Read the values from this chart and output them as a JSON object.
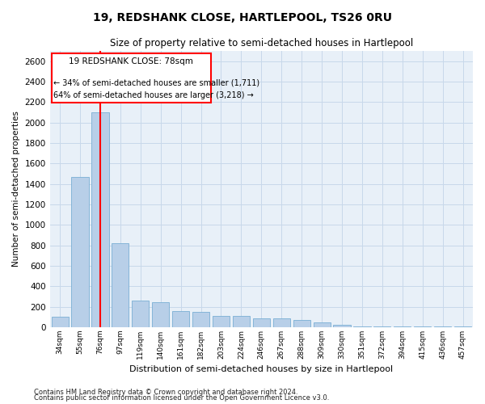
{
  "title": "19, REDSHANK CLOSE, HARTLEPOOL, TS26 0RU",
  "subtitle": "Size of property relative to semi-detached houses in Hartlepool",
  "xlabel": "Distribution of semi-detached houses by size in Hartlepool",
  "ylabel": "Number of semi-detached properties",
  "footer1": "Contains HM Land Registry data © Crown copyright and database right 2024.",
  "footer2": "Contains public sector information licensed under the Open Government Licence v3.0.",
  "categories": [
    "34sqm",
    "55sqm",
    "76sqm",
    "97sqm",
    "119sqm",
    "140sqm",
    "161sqm",
    "182sqm",
    "203sqm",
    "224sqm",
    "246sqm",
    "267sqm",
    "288sqm",
    "309sqm",
    "330sqm",
    "351sqm",
    "372sqm",
    "394sqm",
    "415sqm",
    "436sqm",
    "457sqm"
  ],
  "values": [
    100,
    1470,
    2100,
    820,
    260,
    245,
    160,
    150,
    110,
    110,
    90,
    90,
    70,
    50,
    20,
    10,
    5,
    5,
    5,
    5,
    5
  ],
  "bar_color": "#b8cfe8",
  "bar_edge_color": "#7aafd4",
  "grid_color": "#c8d8ea",
  "background_color": "#e8f0f8",
  "red_line_x": 2,
  "annotation_title": "19 REDSHANK CLOSE: 78sqm",
  "annotation_line1": "← 34% of semi-detached houses are smaller (1,711)",
  "annotation_line2": "64% of semi-detached houses are larger (3,218) →",
  "ylim": [
    0,
    2700
  ],
  "yticks": [
    0,
    200,
    400,
    600,
    800,
    1000,
    1200,
    1400,
    1600,
    1800,
    2000,
    2200,
    2400,
    2600
  ]
}
